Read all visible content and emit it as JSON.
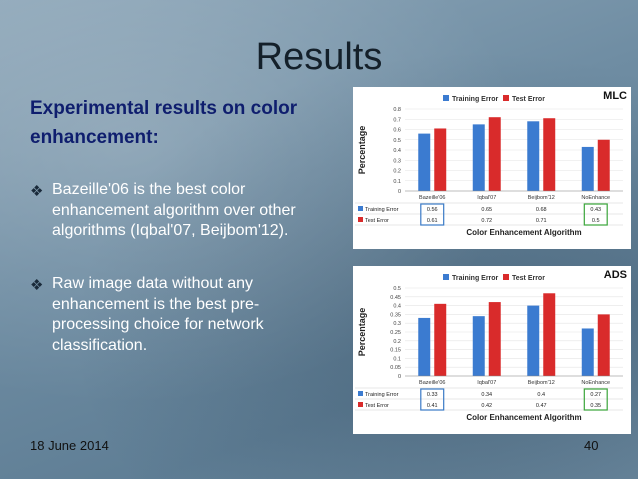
{
  "slide": {
    "title": "Results",
    "subtitle": "Experimental results on color enhancement:",
    "bullets": [
      "Bazeille'06 is the best color enhancement algorithm over other algorithms (Iqbal'07, Beijbom'12).",
      "Raw image data without any enhancement is the best pre-processing choice for network classification."
    ],
    "bullet_icon": "diamond-bullet-icon",
    "date": "18 June 2014",
    "page_number": "40"
  },
  "colors": {
    "training": "#3b7bd0",
    "test": "#d92b2b",
    "best_highlight": "#3a7ac6",
    "good_highlight": "#3aa53a"
  },
  "chart_data": [
    {
      "type": "bar",
      "tag": "MLC",
      "categories": [
        "Bazeille'06",
        "Iqbal'07",
        "Beijbom'12",
        "NoEnhance"
      ],
      "series": [
        {
          "name": "Training Error",
          "values": [
            0.56,
            0.65,
            0.68,
            0.43
          ],
          "labels": [
            "0.56",
            "0.65",
            "0.68",
            "0.43"
          ]
        },
        {
          "name": "Test Error",
          "values": [
            0.61,
            0.72,
            0.71,
            0.5
          ],
          "labels": [
            "0.61",
            "0.72",
            "0.71",
            "0.5"
          ]
        }
      ],
      "ylabel": "Percentage",
      "xlabel": "Color Enhancement Algorithm",
      "yticks": [
        "0.8",
        "0.7",
        "0.6",
        "0.5",
        "0.4",
        "0.3",
        "0.2",
        "0.1",
        "0"
      ],
      "ylim": [
        0,
        0.8
      ],
      "grid": true,
      "legend_position": "top"
    },
    {
      "type": "bar",
      "tag": "ADS",
      "categories": [
        "Bazeille'06",
        "Iqbal'07",
        "Beijbom'12",
        "NoEnhance"
      ],
      "series": [
        {
          "name": "Training Error",
          "values": [
            0.33,
            0.34,
            0.4,
            0.27
          ],
          "labels": [
            "0.33",
            "0.34",
            "0.4",
            "0.27"
          ]
        },
        {
          "name": "Test Error",
          "values": [
            0.41,
            0.42,
            0.47,
            0.35
          ],
          "labels": [
            "0.41",
            "0.42",
            "0.47",
            "0.35"
          ]
        }
      ],
      "ylabel": "Percentage",
      "xlabel": "Color Enhancement Algorithm",
      "yticks": [
        "0.5",
        "0.45",
        "0.4",
        "0.35",
        "0.3",
        "0.25",
        "0.2",
        "0.15",
        "0.1",
        "0.05",
        "0"
      ],
      "ylim": [
        0,
        0.5
      ],
      "grid": true,
      "legend_position": "top"
    }
  ]
}
